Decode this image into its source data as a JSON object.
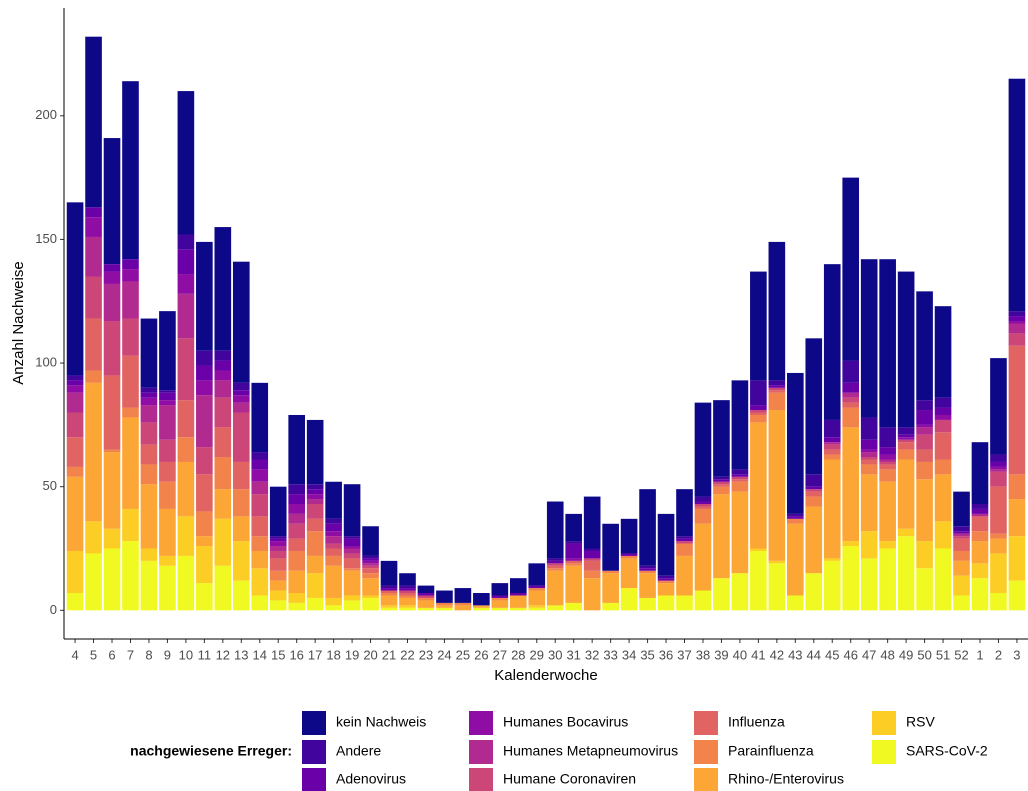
{
  "chart_data": {
    "type": "stacked_bar",
    "x_label": "Kalenderwoche",
    "y_label": "Anzahl Nachweise",
    "legend_title": "nachgewiesene Erreger:",
    "categories": [
      "4",
      "5",
      "6",
      "7",
      "8",
      "9",
      "10",
      "11",
      "12",
      "13",
      "14",
      "15",
      "16",
      "17",
      "18",
      "19",
      "20",
      "21",
      "22",
      "23",
      "24",
      "25",
      "26",
      "27",
      "28",
      "29",
      "30",
      "31",
      "32",
      "33",
      "34",
      "35",
      "36",
      "37",
      "38",
      "39",
      "40",
      "41",
      "42",
      "43",
      "44",
      "45",
      "46",
      "47",
      "48",
      "49",
      "50",
      "51",
      "52",
      "1",
      "2",
      "3"
    ],
    "ylim": [
      -11.6,
      243.6
    ],
    "yticks": [
      0,
      50,
      100,
      150,
      200
    ],
    "grid": false,
    "legend_position": "bottom",
    "series": [
      {
        "name": "kein Nachweis",
        "color": "#0d0887",
        "values": [
          70,
          69,
          51,
          72,
          28,
          32,
          58,
          44,
          50,
          49,
          28,
          20,
          28,
          26,
          15,
          21,
          12,
          10,
          5,
          3,
          5,
          6,
          5,
          5,
          6,
          9,
          23,
          11,
          21,
          19,
          14,
          31,
          25,
          19,
          38,
          31,
          36,
          44,
          56,
          57,
          55,
          63,
          74,
          64,
          68,
          63,
          44,
          37,
          14,
          25,
          39,
          94
        ]
      },
      {
        "name": "Andere",
        "color": "#41049d",
        "values": [
          2,
          0,
          0,
          0,
          2,
          1,
          6,
          6,
          4,
          3,
          3,
          1,
          4,
          2,
          2,
          1,
          1,
          1,
          1,
          0,
          0,
          0,
          0,
          0,
          0,
          0,
          1,
          1,
          1,
          0,
          0,
          1,
          1,
          1,
          2,
          1,
          2,
          10,
          2,
          1,
          5,
          7,
          9,
          9,
          8,
          3,
          4,
          4,
          2,
          2,
          3,
          2
        ]
      },
      {
        "name": "Adenovirus",
        "color": "#6a00a8",
        "values": [
          2,
          4,
          3,
          4,
          2,
          3,
          10,
          6,
          4,
          2,
          4,
          1,
          4,
          2,
          3,
          3,
          1,
          1,
          1,
          1,
          0,
          0,
          0,
          1,
          1,
          1,
          1,
          6,
          3,
          0,
          1,
          1,
          1,
          1,
          1,
          1,
          1,
          2,
          1,
          1,
          1,
          2,
          4,
          4,
          3,
          1,
          6,
          3,
          1,
          2,
          2,
          2
        ]
      },
      {
        "name": "Humanes Bocavirus",
        "color": "#8f0da4",
        "values": [
          3,
          8,
          5,
          5,
          3,
          2,
          8,
          6,
          4,
          3,
          5,
          2,
          4,
          2,
          2,
          1,
          1,
          0,
          0,
          0,
          0,
          0,
          0,
          0,
          0,
          0,
          0,
          1,
          0,
          0,
          0,
          0,
          0,
          0,
          0,
          0,
          0,
          0,
          0,
          0,
          0,
          0,
          0,
          1,
          2,
          1,
          1,
          2,
          0,
          0,
          1,
          1
        ]
      },
      {
        "name": "Humanes Metapneumovirus",
        "color": "#b12a90",
        "values": [
          8,
          16,
          15,
          15,
          7,
          14,
          18,
          21,
          7,
          4,
          5,
          2,
          4,
          2,
          3,
          2,
          1,
          0,
          0,
          0,
          0,
          0,
          0,
          0,
          0,
          0,
          0,
          0,
          0,
          0,
          0,
          0,
          0,
          0,
          0,
          0,
          0,
          0,
          0,
          0,
          0,
          1,
          2,
          2,
          1,
          0,
          3,
          0,
          1,
          1,
          1,
          4
        ]
      },
      {
        "name": "Humane Coronaviren",
        "color": "#cc4778",
        "values": [
          10,
          17,
          22,
          15,
          9,
          9,
          25,
          11,
          12,
          20,
          9,
          3,
          6,
          6,
          2,
          2,
          1,
          0,
          1,
          1,
          0,
          0,
          0,
          0,
          0,
          0,
          1,
          0,
          1,
          0,
          0,
          0,
          0,
          1,
          1,
          1,
          1,
          1,
          1,
          0,
          1,
          2,
          2,
          1,
          1,
          1,
          6,
          5,
          1,
          0,
          6,
          5
        ]
      },
      {
        "name": "Influenza",
        "color": "#e16462",
        "values": [
          12,
          21,
          30,
          21,
          8,
          8,
          15,
          15,
          12,
          11,
          8,
          5,
          5,
          5,
          3,
          4,
          2,
          1,
          1,
          0,
          0,
          0,
          0,
          0,
          0,
          0,
          1,
          1,
          4,
          0,
          0,
          0,
          0,
          0,
          1,
          1,
          1,
          1,
          1,
          0,
          2,
          2,
          2,
          2,
          2,
          3,
          5,
          11,
          5,
          6,
          19,
          52
        ]
      },
      {
        "name": "Parainfluenza",
        "color": "#f2844b",
        "values": [
          4,
          5,
          1,
          4,
          8,
          11,
          10,
          10,
          13,
          11,
          6,
          4,
          8,
          10,
          4,
          1,
          2,
          1,
          1,
          1,
          1,
          1,
          0,
          1,
          0,
          1,
          1,
          1,
          3,
          1,
          1,
          1,
          1,
          5,
          6,
          3,
          4,
          3,
          7,
          2,
          4,
          2,
          8,
          4,
          5,
          4,
          7,
          6,
          4,
          4,
          2,
          10
        ]
      },
      {
        "name": "Rhino-/Enterovirus",
        "color": "#fca636",
        "values": [
          30,
          56,
          31,
          37,
          26,
          19,
          22,
          4,
          12,
          10,
          7,
          4,
          9,
          7,
          13,
          10,
          7,
          4,
          3,
          3,
          1,
          2,
          1,
          3,
          5,
          6,
          14,
          15,
          13,
          12,
          12,
          10,
          5,
          16,
          27,
          34,
          33,
          51,
          61,
          29,
          27,
          40,
          46,
          23,
          24,
          28,
          25,
          19,
          6,
          9,
          6,
          15
        ]
      },
      {
        "name": "RSV",
        "color": "#fcce25",
        "values": [
          17,
          13,
          8,
          13,
          5,
          4,
          16,
          15,
          19,
          16,
          11,
          4,
          4,
          10,
          3,
          2,
          1,
          1,
          1,
          0,
          0,
          0,
          0,
          0,
          0,
          1,
          0,
          0,
          0,
          0,
          0,
          0,
          0,
          0,
          0,
          0,
          0,
          1,
          1,
          0,
          0,
          1,
          2,
          11,
          3,
          3,
          11,
          11,
          8,
          6,
          16,
          18
        ]
      },
      {
        "name": "SARS-CoV-2",
        "color": "#f0f921",
        "values": [
          7,
          23,
          25,
          28,
          20,
          18,
          22,
          11,
          18,
          12,
          6,
          4,
          3,
          5,
          2,
          4,
          5,
          1,
          1,
          1,
          1,
          0,
          1,
          1,
          1,
          1,
          2,
          3,
          0,
          3,
          9,
          5,
          6,
          6,
          8,
          13,
          15,
          24,
          19,
          6,
          15,
          20,
          26,
          21,
          25,
          30,
          17,
          25,
          6,
          13,
          7,
          12
        ]
      }
    ]
  }
}
